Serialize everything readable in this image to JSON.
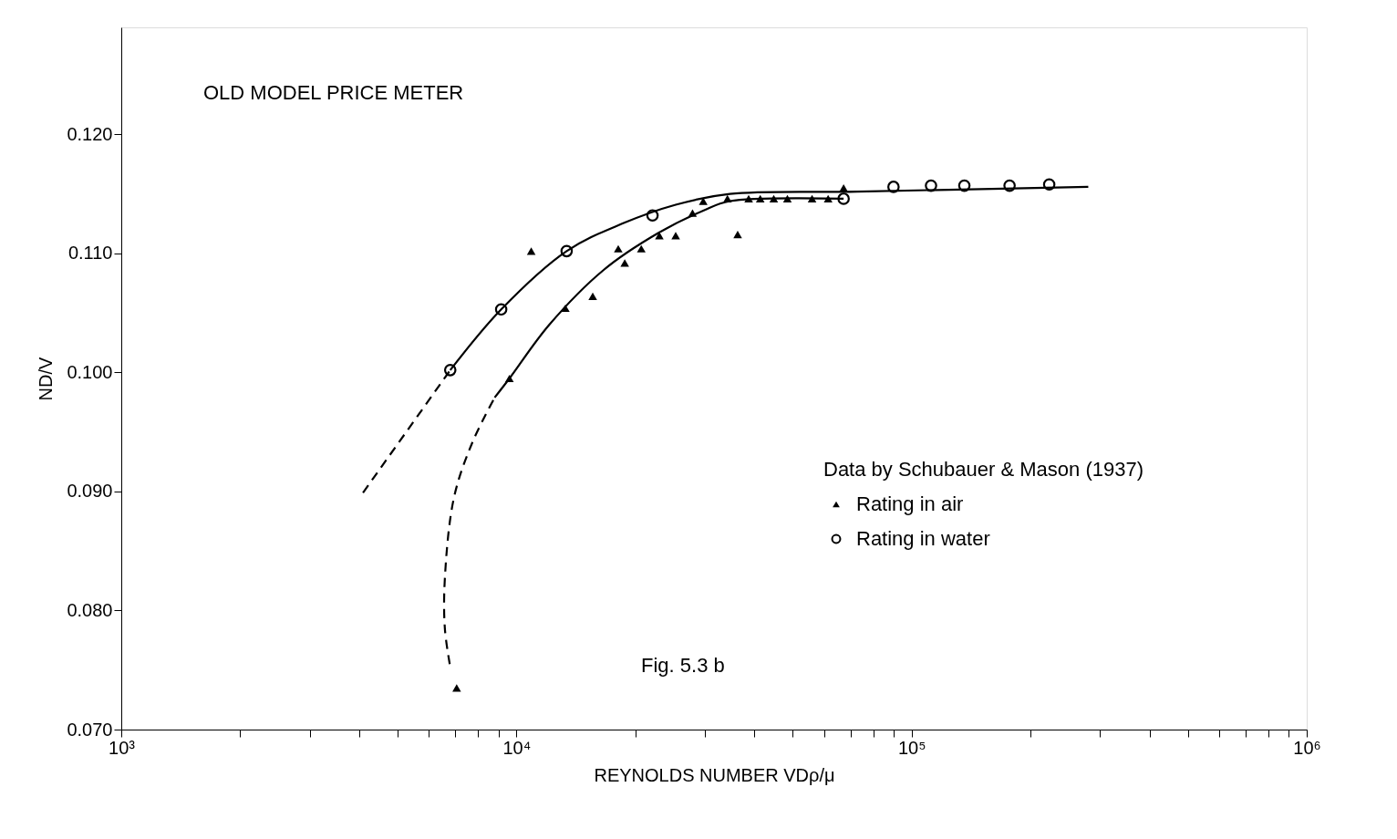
{
  "chart_data": {
    "type": "scatter",
    "xlabel": "REYNOLDS NUMBER VDρ/μ",
    "ylabel": "ND/V",
    "legend_title": "Data by Schubauer & Mason (1937)",
    "legend": "right",
    "annotations": [
      "OLD MODEL PRICE METER",
      "Fig. 5.3 b"
    ],
    "log": "x",
    "grid": false,
    "xlim": [
      1000,
      1000000
    ],
    "xticks": [
      {
        "value": 1000,
        "label": "10³"
      },
      {
        "value": 2000,
        "label": null
      },
      {
        "value": 3000,
        "label": null
      },
      {
        "value": 4000,
        "label": null
      },
      {
        "value": 5000,
        "label": null
      },
      {
        "value": 6000,
        "label": null
      },
      {
        "value": 7000,
        "label": null
      },
      {
        "value": 8000,
        "label": null
      },
      {
        "value": 9000,
        "label": null
      },
      {
        "value": 10000,
        "label": "10⁴"
      },
      {
        "value": 20000,
        "label": null
      },
      {
        "value": 30000,
        "label": null
      },
      {
        "value": 40000,
        "label": null
      },
      {
        "value": 50000,
        "label": null
      },
      {
        "value": 60000,
        "label": null
      },
      {
        "value": 70000,
        "label": null
      },
      {
        "value": 80000,
        "label": null
      },
      {
        "value": 90000,
        "label": null
      },
      {
        "value": 100000,
        "label": "10⁵"
      },
      {
        "value": 200000,
        "label": null
      },
      {
        "value": 300000,
        "label": null
      },
      {
        "value": 400000,
        "label": null
      },
      {
        "value": 500000,
        "label": null
      },
      {
        "value": 600000,
        "label": null
      },
      {
        "value": 700000,
        "label": null
      },
      {
        "value": 800000,
        "label": null
      },
      {
        "value": 900000,
        "label": null
      },
      {
        "value": 1000000,
        "label": "10⁶"
      }
    ],
    "ylim": [
      0.07,
      0.129
    ],
    "yticks": [
      {
        "value": 0.07,
        "label": "0.070"
      },
      {
        "value": 0.08,
        "label": "0.080"
      },
      {
        "value": 0.09,
        "label": "0.090"
      },
      {
        "value": 0.1,
        "label": "0.100"
      },
      {
        "value": 0.11,
        "label": "0.110"
      },
      {
        "value": 0.12,
        "label": "0.120"
      }
    ],
    "series": [
      {
        "name": "Rating in air",
        "marker": "triangle",
        "color": "#000000",
        "x": [
          7060,
          9600,
          10900,
          13300,
          15600,
          18100,
          18800,
          20700,
          23000,
          25300,
          27900,
          29700,
          34200,
          36300,
          38700,
          41400,
          44800,
          48500,
          56000,
          61500,
          67300
        ],
        "values": [
          0.0735,
          0.0995,
          0.1102,
          0.1054,
          0.1064,
          0.1104,
          0.1092,
          0.1104,
          0.1115,
          0.1115,
          0.1134,
          0.1144,
          0.1146,
          0.1116,
          0.1146,
          0.1146,
          0.1146,
          0.1146,
          0.1146,
          0.1146,
          0.1155
        ]
      },
      {
        "name": "Rating in water",
        "marker": "circle",
        "color": "#000000",
        "x": [
          6800,
          9150,
          13400,
          22100,
          67300,
          90000,
          112000,
          136000,
          177000,
          223000
        ],
        "values": [
          0.1002,
          0.1053,
          0.1102,
          0.1132,
          0.1146,
          0.1156,
          0.1157,
          0.1157,
          0.1157,
          0.1158
        ]
      },
      {
        "type": "line",
        "line_style": "dashed",
        "marker": "none",
        "color": "#000000",
        "x": [
          4090,
          6800
        ],
        "values": [
          0.0899,
          0.1002
        ]
      },
      {
        "type": "line",
        "line_style": "solid",
        "marker": "none",
        "color": "#000000",
        "x": [
          6800,
          9150,
          13400,
          18500,
          25300,
          34700,
          72800,
          280000
        ],
        "values": [
          0.1002,
          0.1053,
          0.1102,
          0.1125,
          0.1141,
          0.115,
          0.1152,
          0.1156
        ]
      },
      {
        "type": "line",
        "line_style": "dashed",
        "marker": "none",
        "color": "#000000",
        "x": [
          6780,
          6590,
          6590,
          6950,
          7730,
          8810
        ],
        "values": [
          0.0755,
          0.0785,
          0.0827,
          0.0895,
          0.0941,
          0.0979
        ]
      },
      {
        "type": "line",
        "line_style": "solid",
        "marker": "none",
        "color": "#000000",
        "x": [
          8810,
          9600,
          12100,
          16600,
          22800,
          29700,
          34700,
          67300
        ],
        "values": [
          0.0979,
          0.0995,
          0.104,
          0.1086,
          0.1117,
          0.1136,
          0.1144,
          0.1146
        ]
      }
    ]
  }
}
